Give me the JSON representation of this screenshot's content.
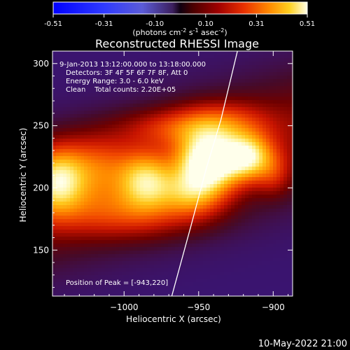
{
  "chart_data": {
    "type": "heatmap",
    "title": "Reconstructed RHESSI Image",
    "colorbar": {
      "ticks": [
        "-0.51",
        "-0.31",
        "-0.10",
        "0.10",
        "0.31",
        "0.51"
      ],
      "label_main": "(photons cm",
      "label_exp1": "-2",
      "label_mid1": " s",
      "label_exp2": "-1",
      "label_mid2": " asec",
      "label_exp3": "-2",
      "label_end": ")",
      "range": [
        -0.51,
        0.51
      ]
    },
    "annotations": {
      "time": "9-Jan-2013 13:12:00.000 to 13:18:00.000",
      "detectors": "Detectors: 3F 4F 5F 6F 7F 8F, Att 0",
      "energy": "Energy Range: 3.0 - 6.0 keV",
      "clean": "Clean    Total counts: 2.20E+05",
      "peak": "Position of Peak = [-943,220]"
    },
    "xlabel": "Heliocentric X (arcsec)",
    "ylabel": "Heliocentric Y (arcsec)",
    "xlim": [
      -1048,
      -887
    ],
    "ylim": [
      113,
      310
    ],
    "xticks": [
      {
        "value": -1000,
        "label": "−1000"
      },
      {
        "value": -950,
        "label": "−950"
      },
      {
        "value": -900,
        "label": "−900"
      }
    ],
    "yticks": [
      {
        "value": 150,
        "label": "150"
      },
      {
        "value": 200,
        "label": "200"
      },
      {
        "value": 250,
        "label": "250"
      },
      {
        "value": 300,
        "label": "300"
      }
    ],
    "sources": [
      {
        "x": -943,
        "y": 222,
        "sx": 14,
        "sy": 16,
        "amp": 0.52
      },
      {
        "x": -917,
        "y": 225,
        "sx": 11,
        "sy": 12,
        "amp": 0.36
      },
      {
        "x": -985,
        "y": 205,
        "sx": 12,
        "sy": 15,
        "amp": 0.3
      },
      {
        "x": -955,
        "y": 197,
        "sx": 14,
        "sy": 13,
        "amp": 0.24
      },
      {
        "x": -1045,
        "y": 205,
        "sx": 12,
        "sy": 17,
        "amp": 0.33
      },
      {
        "x": -1020,
        "y": 215,
        "sx": 20,
        "sy": 18,
        "amp": 0.18
      },
      {
        "x": -965,
        "y": 248,
        "sx": 25,
        "sy": 10,
        "amp": 0.12
      },
      {
        "x": -935,
        "y": 252,
        "sx": 22,
        "sy": 12,
        "amp": 0.14
      },
      {
        "x": -900,
        "y": 212,
        "sx": 8,
        "sy": 12,
        "amp": 0.1
      },
      {
        "x": -1000,
        "y": 180,
        "sx": 35,
        "sy": 14,
        "amp": 0.14
      }
    ],
    "band": {
      "amp": 0.1,
      "y0": 215,
      "slope": 0.33,
      "x0": -970,
      "sy": 34
    },
    "limb": [
      [
        -968,
        113
      ],
      [
        -955,
        170
      ],
      [
        -945,
        215
      ],
      [
        -935,
        255
      ],
      [
        -924,
        310
      ]
    ]
  },
  "footer": {
    "date": "10-May-2022 21:00"
  }
}
